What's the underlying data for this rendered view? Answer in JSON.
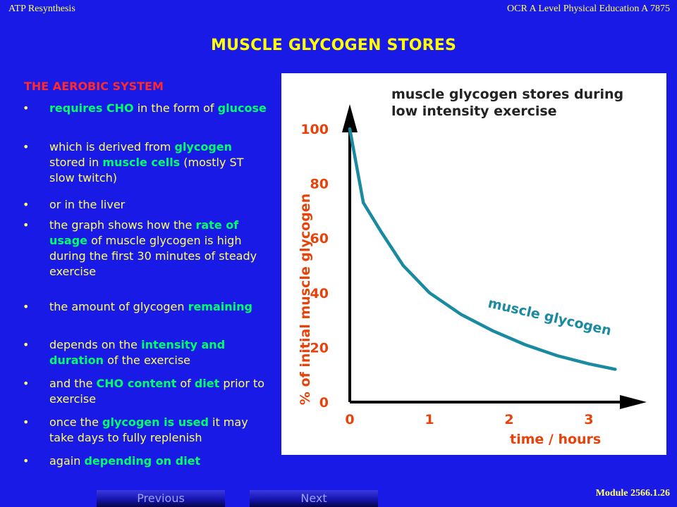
{
  "header": {
    "topic": "ATP Resynthesis",
    "course": "OCR A Level Physical Education A 7875"
  },
  "slide": {
    "title": "MUSCLE GLYCOGEN STORES",
    "section_heading": "THE AEROBIC SYSTEM",
    "bullets": [
      [
        {
          "t": "requires CHO",
          "hl": true
        },
        {
          "t": " in the form of "
        },
        {
          "t": "glucose",
          "hl": true
        }
      ],
      [
        {
          "t": "which is derived from "
        },
        {
          "t": "glycogen",
          "hl": true
        },
        {
          "t": " stored in "
        },
        {
          "t": "muscle cells",
          "hl": true
        },
        {
          "t": " (mostly ST slow twitch)"
        }
      ],
      [
        {
          "t": "or in the liver"
        }
      ],
      [
        {
          "t": "the graph shows how the "
        },
        {
          "t": "rate of usage",
          "hl": true
        },
        {
          "t": " of muscle glycogen is high during the first 30 minutes of steady exercise"
        }
      ],
      [
        {
          "t": "the amount of glycogen "
        },
        {
          "t": "remaining",
          "hl": true
        }
      ],
      [
        {
          "t": "depends on the "
        },
        {
          "t": "intensity and duration",
          "hl": true
        },
        {
          "t": " of the exercise"
        }
      ],
      [
        {
          "t": "and the "
        },
        {
          "t": "CHO content",
          "hl": true
        },
        {
          "t": " of "
        },
        {
          "t": "diet",
          "hl": true
        },
        {
          "t": " prior to exercise"
        }
      ],
      [
        {
          "t": "once the "
        },
        {
          "t": "glycogen is used",
          "hl": true
        },
        {
          "t": " it may take days to fully replenish"
        }
      ],
      [
        {
          "t": "again "
        },
        {
          "t": "depending on diet",
          "hl": true
        }
      ]
    ]
  },
  "chart_data": {
    "type": "line",
    "title": "muscle glycogen stores during low intensity exercise",
    "xlabel": "time / hours",
    "ylabel": "% of initial muscle glycogen",
    "x_ticks": [
      0,
      1,
      2,
      3
    ],
    "y_ticks": [
      0,
      20,
      40,
      60,
      80,
      100
    ],
    "xlim": [
      0,
      3.6
    ],
    "ylim": [
      0,
      100
    ],
    "series": [
      {
        "name": "muscle glycogen",
        "x": [
          0,
          0.17,
          0.4,
          0.67,
          1.0,
          1.4,
          1.8,
          2.2,
          2.6,
          3.0,
          3.33
        ],
        "y": [
          100,
          73,
          62,
          50,
          40,
          32,
          26,
          21,
          17,
          14,
          12
        ]
      }
    ],
    "colors": {
      "line": "#1a8aa0",
      "axes": "#000000",
      "tick_labels": "#e8420a",
      "text": "#222222"
    }
  },
  "footer": {
    "module": "Module 2566.1.26",
    "previous_label": "Previous",
    "next_label": "Next"
  }
}
